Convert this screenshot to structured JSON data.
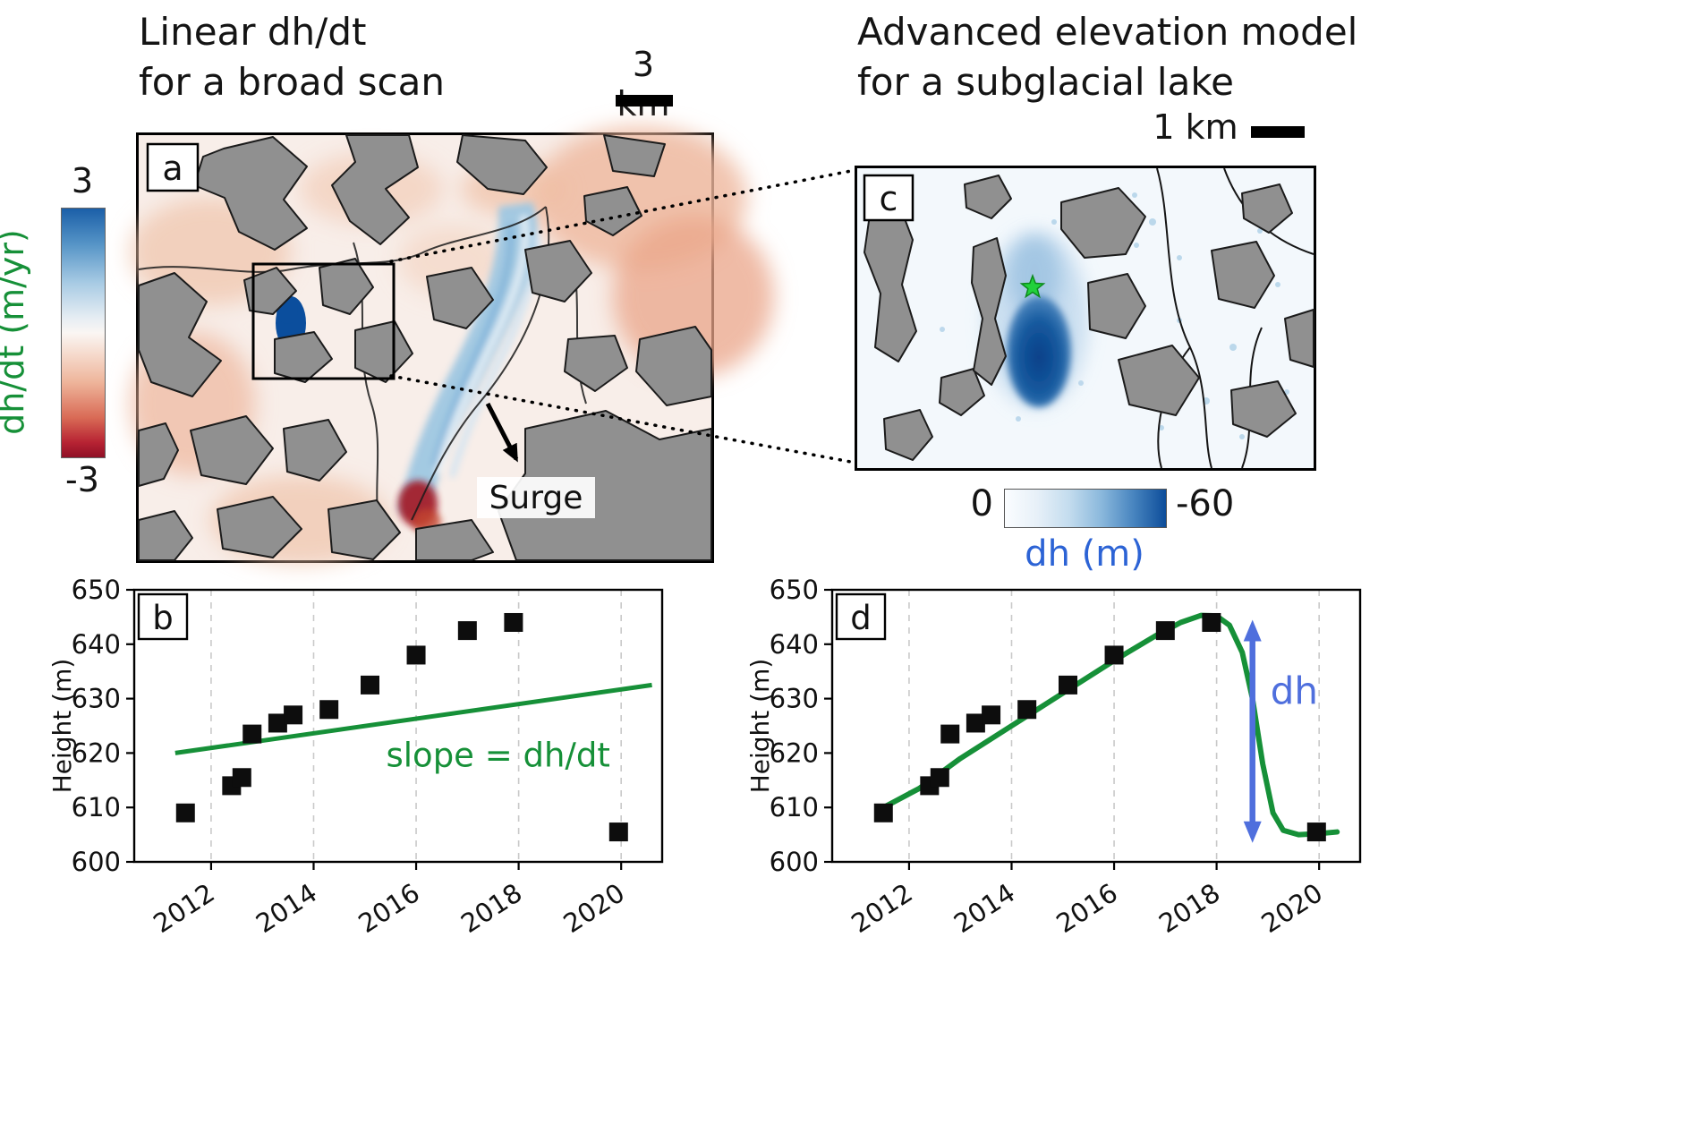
{
  "figure": {
    "panel_a": {
      "label": "a",
      "title_line1": "Linear dh/dt",
      "title_line2": "for a broad scan",
      "scalebar_label": "3 km",
      "surge_label": "Surge",
      "colorbar": {
        "max_label": "3",
        "min_label": "-3",
        "axis_label": "dh/dt (m/yr)"
      }
    },
    "panel_c": {
      "label": "c",
      "title_line1": "Advanced elevation model",
      "title_line2": "for a subglacial lake",
      "scalebar_label": "1 km",
      "colorbar": {
        "left_label": "0",
        "right_label": "-60",
        "axis_label": "dh (m)"
      }
    },
    "colors": {
      "green": "#169038",
      "arrow_blue": "#4f6fdd",
      "dh_label_blue": "#2c63d5",
      "star_green": "#22d13c",
      "cmap_deep_blue": "#0d4d9a",
      "cmap_deep_red": "#8f0f26"
    }
  },
  "chart_data": [
    {
      "id": "chart-b",
      "panel_label": "b",
      "type": "scatter",
      "title": "",
      "xlabel": "",
      "ylabel": "Height (m)",
      "xlim": [
        2010.5,
        2020.8
      ],
      "ylim": [
        600,
        650
      ],
      "xticks": [
        2012,
        2014,
        2016,
        2018,
        2020
      ],
      "yticks": [
        600,
        610,
        620,
        630,
        640,
        650
      ],
      "grid": "vertical-dashed",
      "legend": "none",
      "points_x": [
        2011.5,
        2012.4,
        2012.6,
        2012.8,
        2013.3,
        2013.6,
        2014.3,
        2015.1,
        2016.0,
        2017.0,
        2017.9,
        2019.95
      ],
      "points_y": [
        609,
        614,
        615.5,
        623.5,
        625.5,
        627,
        628,
        632.5,
        638,
        642.5,
        644,
        605.5
      ],
      "trend_line": {
        "x": [
          2011.3,
          2020.6
        ],
        "y": [
          620,
          632.5
        ]
      },
      "annotation": {
        "text": "slope = dh/dt",
        "x": 2017.6,
        "y": 617.5,
        "anchor": "middle",
        "color_key": "green",
        "size": 37
      }
    },
    {
      "id": "chart-d",
      "panel_label": "d",
      "type": "scatter",
      "title": "",
      "xlabel": "",
      "ylabel": "Height (m)",
      "xlim": [
        2010.5,
        2020.8
      ],
      "ylim": [
        600,
        650
      ],
      "xticks": [
        2012,
        2014,
        2016,
        2018,
        2020
      ],
      "yticks": [
        600,
        610,
        620,
        630,
        640,
        650
      ],
      "grid": "vertical-dashed",
      "legend": "none",
      "points_x": [
        2011.5,
        2012.4,
        2012.6,
        2012.8,
        2013.3,
        2013.6,
        2014.3,
        2015.1,
        2016.0,
        2017.0,
        2017.9,
        2019.95
      ],
      "points_y": [
        609,
        614,
        615.5,
        623.5,
        625.5,
        627,
        628,
        632.5,
        638,
        642.5,
        644,
        605.5
      ],
      "curve": [
        [
          2011.4,
          609.5
        ],
        [
          2012.2,
          613.5
        ],
        [
          2013.0,
          619
        ],
        [
          2014.0,
          625
        ],
        [
          2015.0,
          631
        ],
        [
          2016.0,
          637
        ],
        [
          2016.8,
          641.5
        ],
        [
          2017.3,
          644
        ],
        [
          2017.7,
          645.3
        ],
        [
          2018.0,
          645.2
        ],
        [
          2018.25,
          643.5
        ],
        [
          2018.5,
          638.5
        ],
        [
          2018.7,
          630
        ],
        [
          2018.9,
          618
        ],
        [
          2019.1,
          609
        ],
        [
          2019.3,
          605.8
        ],
        [
          2019.6,
          605.0
        ],
        [
          2020.0,
          605.2
        ],
        [
          2020.35,
          605.5
        ]
      ],
      "arrow": {
        "x": 2018.7,
        "y1": 644.5,
        "y2": 603.5
      },
      "annotation": {
        "text": "dh",
        "x": 2019.05,
        "y": 629,
        "anchor": "start",
        "color_key": "arrow_blue",
        "size": 42
      }
    }
  ]
}
